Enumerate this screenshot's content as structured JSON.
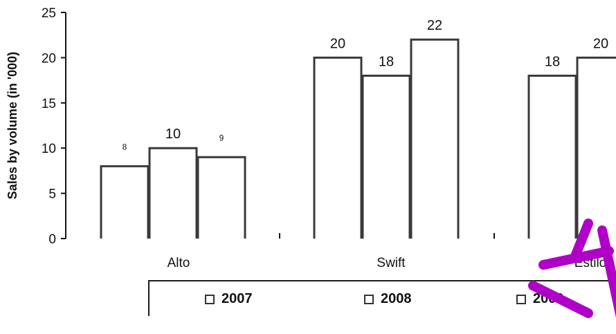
{
  "chart_data": {
    "type": "bar",
    "ylabel": "Sales by volume (in '000)",
    "ylim": [
      0,
      25
    ],
    "yticks": [
      "0",
      "5",
      "10",
      "15",
      "20",
      "25"
    ],
    "categories": [
      "Alto",
      "Swift",
      "Estilo"
    ],
    "series": [
      {
        "name": "2007",
        "values": [
          8,
          20,
          18
        ],
        "labels": [
          "8",
          "20",
          "18"
        ]
      },
      {
        "name": "2008",
        "values": [
          10,
          18,
          20
        ],
        "labels": [
          "10",
          "18",
          "20"
        ]
      },
      {
        "name": "2009",
        "values": [
          9,
          22,
          null
        ],
        "labels": [
          "9",
          "22",
          ""
        ]
      }
    ],
    "legend_position": "bottom",
    "grid": false
  },
  "colors": {
    "bar_fill": "#ffffff",
    "bar_stroke": "#3a3a3a",
    "axis": "#111111",
    "watermark": "#b000c8"
  }
}
